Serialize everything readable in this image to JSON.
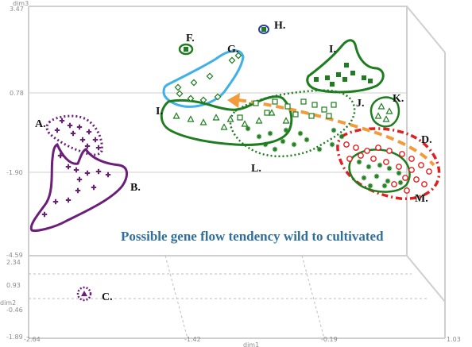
{
  "chart_data": {
    "type": "scatter",
    "title": "",
    "annotation": "Possible gene flow tendency wild to cultivated",
    "axes": {
      "x": {
        "label": "dim1",
        "ticks": [
          "-2.64",
          "-1.42",
          "-0.19",
          "1.03"
        ],
        "range": [
          -2.64,
          1.03
        ]
      },
      "y": {
        "label": "dim2",
        "ticks": [
          "-1.89",
          "-0.46",
          "0.93",
          "2.34"
        ],
        "range": [
          -1.89,
          2.34
        ]
      },
      "z": {
        "label": "dim3",
        "ticks": [
          "-4.59",
          "-1.90",
          "0.78",
          "3.47"
        ],
        "range": [
          -4.59,
          3.47
        ]
      }
    },
    "groups": [
      {
        "id": "A",
        "label": "A.",
        "color": "#6b1f7a",
        "marker": "cross"
      },
      {
        "id": "B",
        "label": "B.",
        "color": "#6b1f7a",
        "marker": "cross"
      },
      {
        "id": "C",
        "label": "C.",
        "color": "#6b1f7a",
        "marker": "triangle-filled"
      },
      {
        "id": "D",
        "label": "D.",
        "color": "#e02020",
        "marker": "circle-open"
      },
      {
        "id": "F",
        "label": "F.",
        "color": "#1e7d1e",
        "marker": "square-filled"
      },
      {
        "id": "G",
        "label": "G.",
        "color": "#1e7d1e",
        "marker": "diamond-open"
      },
      {
        "id": "H",
        "label": "H.",
        "color": "#1e7d1e",
        "marker": "square-filled"
      },
      {
        "id": "I",
        "label": "I.",
        "color": "#1e7d1e",
        "marker": "square-filled"
      },
      {
        "id": "I2",
        "label": "I.",
        "color": "#1e7d1e",
        "marker": "triangle-open"
      },
      {
        "id": "J",
        "label": "J.",
        "color": "#1e7d1e",
        "marker": "square-open"
      },
      {
        "id": "K",
        "label": "K.",
        "color": "#1e7d1e",
        "marker": "triangle-open"
      },
      {
        "id": "L",
        "label": "L.",
        "color": "#1e7d1e",
        "marker": "asterisk"
      },
      {
        "id": "M",
        "label": "M.",
        "color": "#1e7d1e",
        "marker": "asterisk"
      }
    ],
    "colors": {
      "purple": "#6b1f7a",
      "green": "#1e7d1e",
      "red": "#e02020",
      "blue_hull": "#3fb0e8",
      "arrow": "#f39a3a",
      "annotation": "#2e6f9e",
      "frame": "#c8c8c8"
    }
  }
}
